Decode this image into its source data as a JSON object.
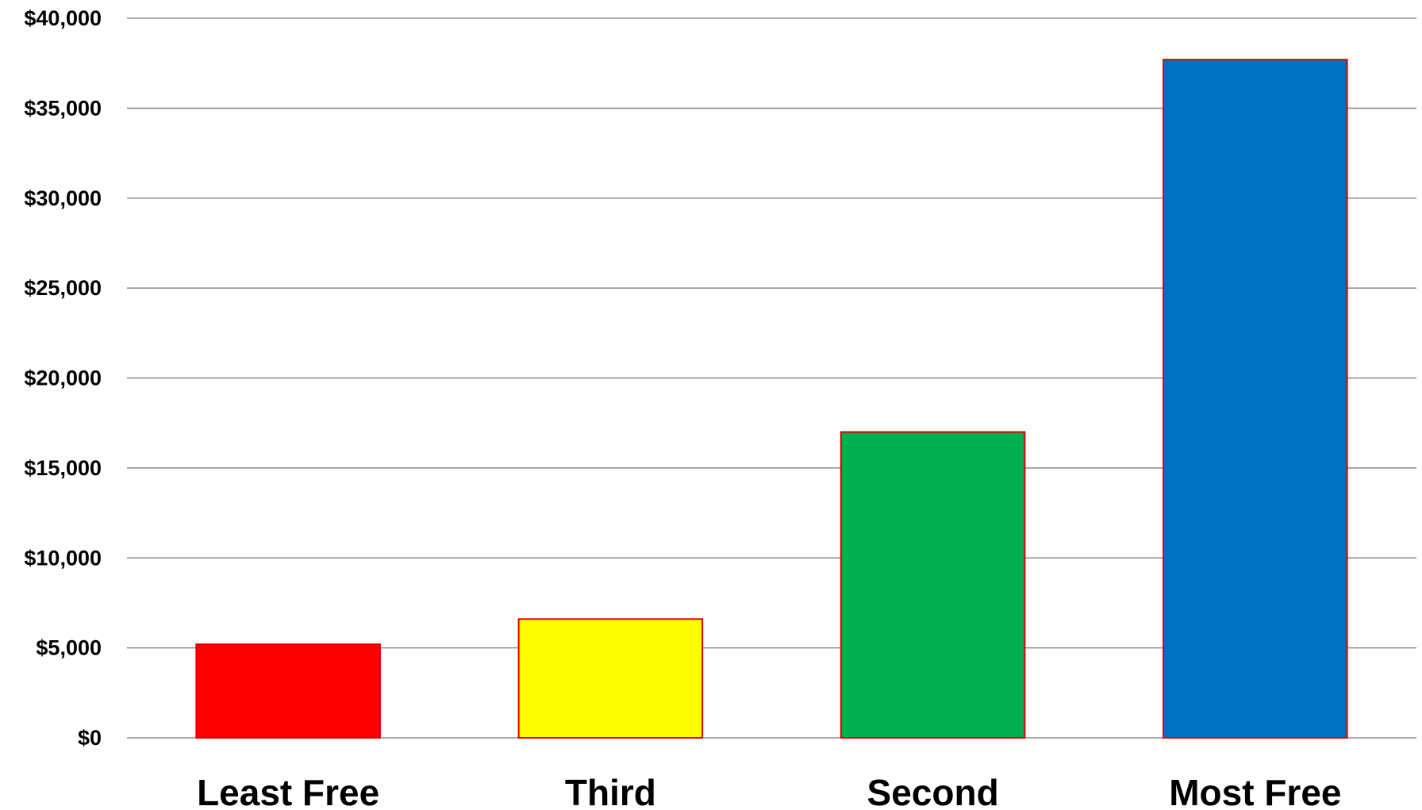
{
  "chart_data": {
    "type": "bar",
    "categories": [
      "Least Free",
      "Third",
      "Second",
      "Most Free"
    ],
    "values": [
      5200,
      6600,
      17000,
      37700
    ],
    "bar_colors": [
      "#ff0000",
      "#ffff00",
      "#00b050",
      "#0070c0"
    ],
    "bar_border_color": "#e00000",
    "gridline_color": "#8c8c8c",
    "ylim": [
      0,
      40000
    ],
    "y_ticks": [
      0,
      5000,
      10000,
      15000,
      20000,
      25000,
      30000,
      35000,
      40000
    ],
    "y_tick_labels": [
      "$0",
      "$5,000",
      "$10,000",
      "$15,000",
      "$20,000",
      "$25,000",
      "$30,000",
      "$35,000",
      "$40,000"
    ],
    "grid": true,
    "legend": "none",
    "title": "",
    "xlabel": "",
    "ylabel": ""
  }
}
